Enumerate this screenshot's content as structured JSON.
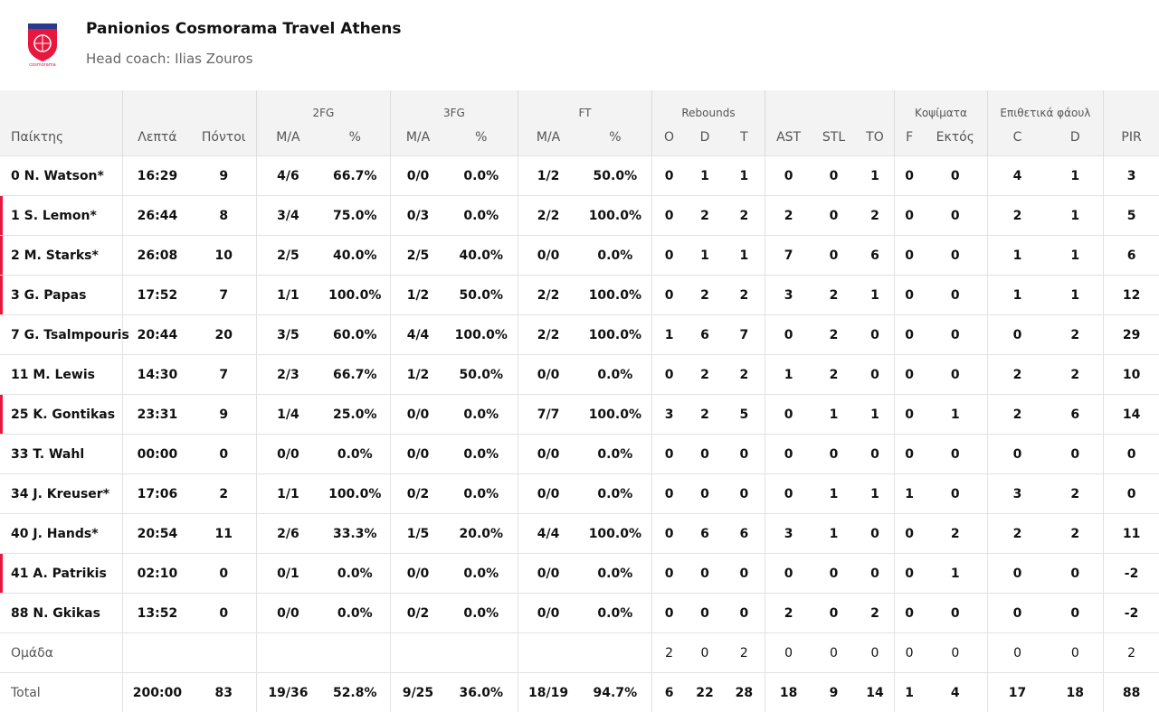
{
  "team": {
    "name": "Panionios Cosmorama Travel Athens",
    "coach": "Head coach: Ilias Zouros",
    "logo_text": "ΠΑΝΙΟΝΙΟΣ",
    "logo_sub": "cosmorama",
    "logo_color": "#e8173e"
  },
  "header": {
    "groups": {
      "fg2": "2FG",
      "fg3": "3FG",
      "ft": "FT",
      "reb": "Rebounds",
      "blk": "Κοψίματα",
      "fouls": "Επιθετικά φάουλ"
    },
    "cols": {
      "player": "Παίκτης",
      "min": "Λεπτά",
      "pts": "Πόντοι",
      "fg2_ma": "M/A",
      "fg2_pct": "%",
      "fg3_ma": "M/A",
      "fg3_pct": "%",
      "ft_ma": "M/A",
      "ft_pct": "%",
      "reb_o": "O",
      "reb_d": "D",
      "reb_t": "T",
      "ast": "AST",
      "stl": "STL",
      "to": "TO",
      "blk_f": "F",
      "blk_ag": "Εκτός",
      "foul_c": "C",
      "foul_d": "D",
      "pir": "PIR"
    }
  },
  "rows": [
    {
      "player": "0 N. Watson*",
      "mark": false,
      "min": "16:29",
      "pts": "9",
      "fg2": "4/6",
      "fg2p": "66.7%",
      "fg3": "0/0",
      "fg3p": "0.0%",
      "ft": "1/2",
      "ftp": "50.0%",
      "o": "0",
      "d": "1",
      "t": "1",
      "ast": "0",
      "stl": "0",
      "to": "1",
      "bf": "0",
      "ba": "0",
      "fc": "4",
      "fd": "1",
      "pir": "3"
    },
    {
      "player": "1 S. Lemon*",
      "mark": true,
      "min": "26:44",
      "pts": "8",
      "fg2": "3/4",
      "fg2p": "75.0%",
      "fg3": "0/3",
      "fg3p": "0.0%",
      "ft": "2/2",
      "ftp": "100.0%",
      "o": "0",
      "d": "2",
      "t": "2",
      "ast": "2",
      "stl": "0",
      "to": "2",
      "bf": "0",
      "ba": "0",
      "fc": "2",
      "fd": "1",
      "pir": "5"
    },
    {
      "player": "2 M. Starks*",
      "mark": true,
      "min": "26:08",
      "pts": "10",
      "fg2": "2/5",
      "fg2p": "40.0%",
      "fg3": "2/5",
      "fg3p": "40.0%",
      "ft": "0/0",
      "ftp": "0.0%",
      "o": "0",
      "d": "1",
      "t": "1",
      "ast": "7",
      "stl": "0",
      "to": "6",
      "bf": "0",
      "ba": "0",
      "fc": "1",
      "fd": "1",
      "pir": "6"
    },
    {
      "player": "3 G. Papas",
      "mark": true,
      "min": "17:52",
      "pts": "7",
      "fg2": "1/1",
      "fg2p": "100.0%",
      "fg3": "1/2",
      "fg3p": "50.0%",
      "ft": "2/2",
      "ftp": "100.0%",
      "o": "0",
      "d": "2",
      "t": "2",
      "ast": "3",
      "stl": "2",
      "to": "1",
      "bf": "0",
      "ba": "0",
      "fc": "1",
      "fd": "1",
      "pir": "12"
    },
    {
      "player": "7 G. Tsalmpouris",
      "mark": false,
      "min": "20:44",
      "pts": "20",
      "fg2": "3/5",
      "fg2p": "60.0%",
      "fg3": "4/4",
      "fg3p": "100.0%",
      "ft": "2/2",
      "ftp": "100.0%",
      "o": "1",
      "d": "6",
      "t": "7",
      "ast": "0",
      "stl": "2",
      "to": "0",
      "bf": "0",
      "ba": "0",
      "fc": "0",
      "fd": "2",
      "pir": "29"
    },
    {
      "player": "11 M. Lewis",
      "mark": false,
      "min": "14:30",
      "pts": "7",
      "fg2": "2/3",
      "fg2p": "66.7%",
      "fg3": "1/2",
      "fg3p": "50.0%",
      "ft": "0/0",
      "ftp": "0.0%",
      "o": "0",
      "d": "2",
      "t": "2",
      "ast": "1",
      "stl": "2",
      "to": "0",
      "bf": "0",
      "ba": "0",
      "fc": "2",
      "fd": "2",
      "pir": "10"
    },
    {
      "player": "25 K. Gontikas",
      "mark": true,
      "min": "23:31",
      "pts": "9",
      "fg2": "1/4",
      "fg2p": "25.0%",
      "fg3": "0/0",
      "fg3p": "0.0%",
      "ft": "7/7",
      "ftp": "100.0%",
      "o": "3",
      "d": "2",
      "t": "5",
      "ast": "0",
      "stl": "1",
      "to": "1",
      "bf": "0",
      "ba": "1",
      "fc": "2",
      "fd": "6",
      "pir": "14"
    },
    {
      "player": "33 T. Wahl",
      "mark": false,
      "min": "00:00",
      "pts": "0",
      "fg2": "0/0",
      "fg2p": "0.0%",
      "fg3": "0/0",
      "fg3p": "0.0%",
      "ft": "0/0",
      "ftp": "0.0%",
      "o": "0",
      "d": "0",
      "t": "0",
      "ast": "0",
      "stl": "0",
      "to": "0",
      "bf": "0",
      "ba": "0",
      "fc": "0",
      "fd": "0",
      "pir": "0"
    },
    {
      "player": "34 J. Kreuser*",
      "mark": false,
      "min": "17:06",
      "pts": "2",
      "fg2": "1/1",
      "fg2p": "100.0%",
      "fg3": "0/2",
      "fg3p": "0.0%",
      "ft": "0/0",
      "ftp": "0.0%",
      "o": "0",
      "d": "0",
      "t": "0",
      "ast": "0",
      "stl": "1",
      "to": "1",
      "bf": "1",
      "ba": "0",
      "fc": "3",
      "fd": "2",
      "pir": "0"
    },
    {
      "player": "40 J. Hands*",
      "mark": false,
      "min": "20:54",
      "pts": "11",
      "fg2": "2/6",
      "fg2p": "33.3%",
      "fg3": "1/5",
      "fg3p": "20.0%",
      "ft": "4/4",
      "ftp": "100.0%",
      "o": "0",
      "d": "6",
      "t": "6",
      "ast": "3",
      "stl": "1",
      "to": "0",
      "bf": "0",
      "ba": "2",
      "fc": "2",
      "fd": "2",
      "pir": "11"
    },
    {
      "player": "41 A. Patrikis",
      "mark": true,
      "min": "02:10",
      "pts": "0",
      "fg2": "0/1",
      "fg2p": "0.0%",
      "fg3": "0/0",
      "fg3p": "0.0%",
      "ft": "0/0",
      "ftp": "0.0%",
      "o": "0",
      "d": "0",
      "t": "0",
      "ast": "0",
      "stl": "0",
      "to": "0",
      "bf": "0",
      "ba": "1",
      "fc": "0",
      "fd": "0",
      "pir": "-2"
    },
    {
      "player": "88 N. Gkikas",
      "mark": false,
      "min": "13:52",
      "pts": "0",
      "fg2": "0/0",
      "fg2p": "0.0%",
      "fg3": "0/2",
      "fg3p": "0.0%",
      "ft": "0/0",
      "ftp": "0.0%",
      "o": "0",
      "d": "0",
      "t": "0",
      "ast": "2",
      "stl": "0",
      "to": "2",
      "bf": "0",
      "ba": "0",
      "fc": "0",
      "fd": "0",
      "pir": "-2"
    }
  ],
  "team_row": {
    "label": "Ομάδα",
    "o": "2",
    "d": "0",
    "t": "2",
    "ast": "0",
    "stl": "0",
    "to": "0",
    "bf": "0",
    "ba": "0",
    "fc": "0",
    "fd": "0",
    "pir": "2"
  },
  "total_row": {
    "label": "Total",
    "min": "200:00",
    "pts": "83",
    "fg2": "19/36",
    "fg2p": "52.8%",
    "fg3": "9/25",
    "fg3p": "36.0%",
    "ft": "18/19",
    "ftp": "94.7%",
    "o": "6",
    "d": "22",
    "t": "28",
    "ast": "18",
    "stl": "9",
    "to": "14",
    "bf": "1",
    "ba": "4",
    "fc": "17",
    "fd": "18",
    "pir": "88"
  }
}
